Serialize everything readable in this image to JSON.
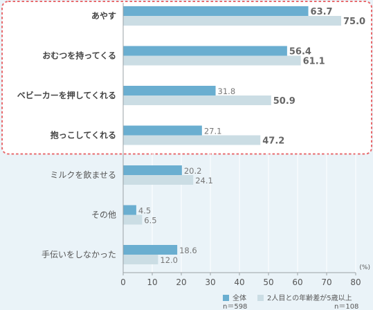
{
  "chart_data": {
    "type": "bar",
    "orientation": "horizontal",
    "categories": [
      "あやす",
      "おむつを持ってくる",
      "ベビーカーを押してくれる",
      "抱っこしてくれる",
      "ミルクを飲ませる",
      "その他",
      "手伝いをしなかった"
    ],
    "highlighted_categories": [
      "あやす",
      "おむつを持ってくる",
      "ベビーカーを押してくれる",
      "抱っこしてくれる"
    ],
    "series": [
      {
        "name": "全体",
        "sample": "n＝598",
        "color": "#6aaed0",
        "values": [
          63.7,
          56.4,
          31.8,
          27.1,
          20.2,
          4.5,
          18.6
        ]
      },
      {
        "name": "2人目との年齢差が5歳以上",
        "sample": "n＝108",
        "color": "#cbdde4",
        "values": [
          75.0,
          61.1,
          50.9,
          47.2,
          24.1,
          6.5,
          12.0
        ]
      }
    ],
    "unit_label": "(%)",
    "xlim": [
      0,
      80
    ],
    "xticks": [
      0,
      10,
      20,
      30,
      40,
      50,
      60,
      70,
      80
    ],
    "grid": true,
    "legend_position": "bottom-right",
    "colors": {
      "background": "#eaf3f8",
      "highlight_border": "#e8696c",
      "highlight_fill": "#ffffff",
      "grid": "#ffffff",
      "text": "#555555"
    }
  }
}
